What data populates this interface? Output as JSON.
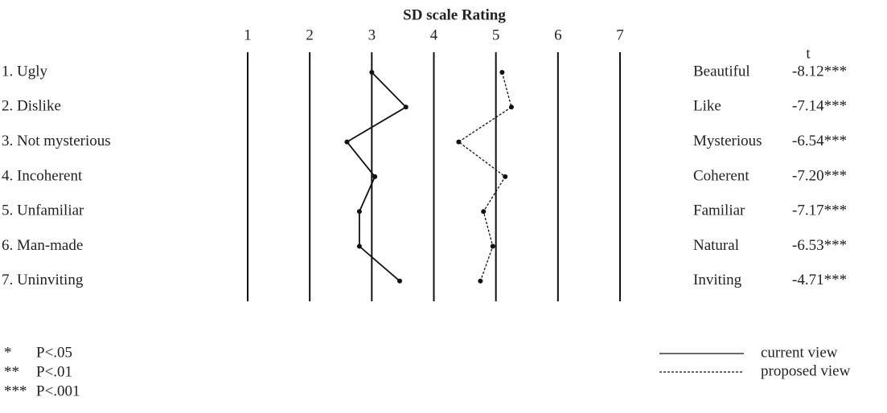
{
  "chart_data": {
    "type": "profile",
    "title": "SD scale Rating",
    "categories": [
      "1. Ugly",
      "2. Dislike",
      "3. Not mysterious",
      "4. Incoherent",
      "5. Unfamiliar",
      "6. Man-made",
      "7. Uninviting"
    ],
    "right_labels": [
      "Beautiful",
      "Like",
      "Mysterious",
      "Coherent",
      "Familiar",
      "Natural",
      "Inviting"
    ],
    "t_stats": {
      "label": "t",
      "values": [
        -8.12,
        -7.14,
        -6.54,
        -7.2,
        -7.17,
        -6.53,
        -4.71
      ],
      "value_labels": [
        "-8.12***",
        "-7.14***",
        "-6.54***",
        "-7.20***",
        "-7.17***",
        "-6.53***",
        "-4.71***"
      ]
    },
    "xlim": [
      1,
      7
    ],
    "xticks": [
      1,
      2,
      3,
      4,
      5,
      6,
      7
    ],
    "series": [
      {
        "name": "current view",
        "color": "#111111",
        "dash": "solid",
        "values": [
          3.0,
          3.55,
          2.6,
          3.05,
          2.8,
          2.8,
          3.45
        ]
      },
      {
        "name": "proposed view",
        "color": "#111111",
        "dash": "dotted",
        "values": [
          5.1,
          5.25,
          4.4,
          5.15,
          4.8,
          4.95,
          4.75
        ]
      }
    ],
    "notes": [
      {
        "symbol": "*",
        "text": "P<.05"
      },
      {
        "symbol": "**",
        "text": "P<.01"
      },
      {
        "symbol": "***",
        "text": "P<.001"
      }
    ]
  }
}
